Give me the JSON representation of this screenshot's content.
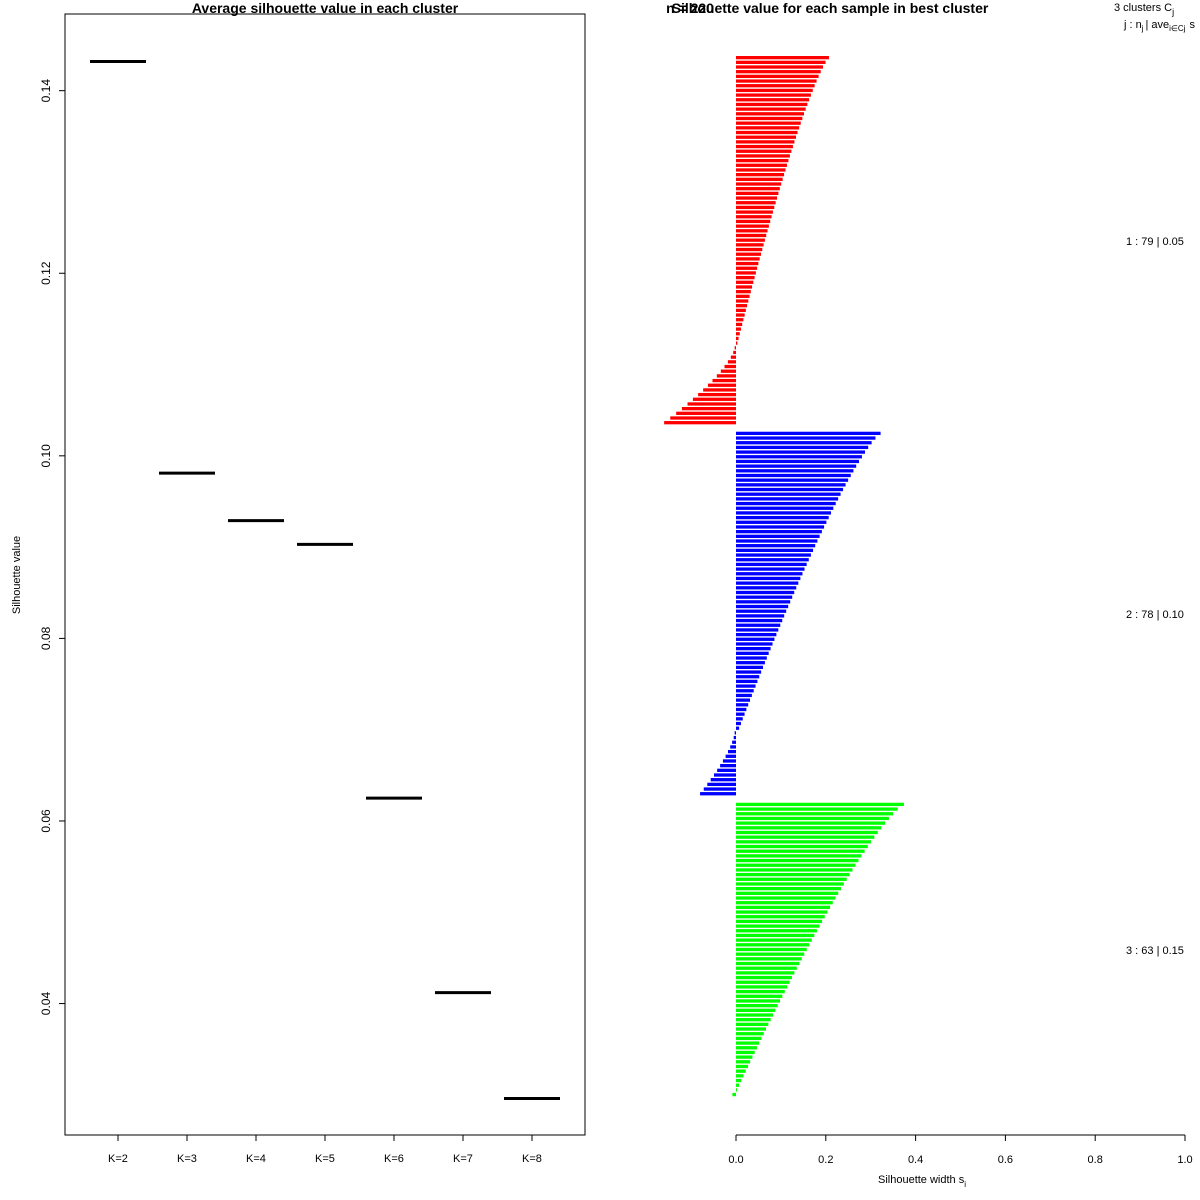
{
  "chart_data": [
    {
      "type": "line",
      "title": "Average silhouette value in each cluster",
      "ylabel": "Silhouette value",
      "xlabel": "",
      "categories": [
        "K=2",
        "K=3",
        "K=4",
        "K=5",
        "K=6",
        "K=7",
        "K=8"
      ],
      "values": [
        0.1432,
        0.0981,
        0.0929,
        0.0903,
        0.0625,
        0.0412,
        0.0296
      ],
      "ylim": [
        0.0256,
        0.1484
      ],
      "yticks": [
        "0.04",
        "0.06",
        "0.08",
        "0.10",
        "0.12",
        "0.14"
      ],
      "grid": false
    },
    {
      "type": "bar",
      "title": "Silhouette value for each sample in best cluster",
      "overlay_title": "n = 220",
      "xlabel": "Silhouette width s",
      "xlabel_sub": "i",
      "xlim": [
        0,
        1
      ],
      "xticks": [
        "0.0",
        "0.2",
        "0.4",
        "0.6",
        "0.8",
        "1.0"
      ],
      "legend_header": "3  clusters  C",
      "legend_header_sub": "j",
      "legend_subheader": "j :  n",
      "legend_subheader_rest": "| ave",
      "legend_subheader_sub": "i∈Cj",
      "legend_subheader_end": "s",
      "grid": false,
      "series": [
        {
          "label": "1 :  79  |  0.05",
          "color": "#ff0000",
          "pos_max": 0.207,
          "pos_min": 0.003,
          "n_pos": 62,
          "neg_min": -0.003,
          "neg_max": -0.16,
          "n_neg": 17
        },
        {
          "label": "2 :  78  |  0.10",
          "color": "#0000ff",
          "pos_max": 0.322,
          "pos_min": 0.007,
          "n_pos": 64,
          "neg_min": -0.003,
          "neg_max": -0.08,
          "n_neg": 14
        },
        {
          "label": "3 :  63  |  0.15",
          "color": "#00ff00",
          "pos_max": 0.374,
          "pos_min": 0.002,
          "n_pos": 62,
          "neg_min": -0.008,
          "neg_max": -0.008,
          "n_neg": 1
        }
      ]
    }
  ]
}
